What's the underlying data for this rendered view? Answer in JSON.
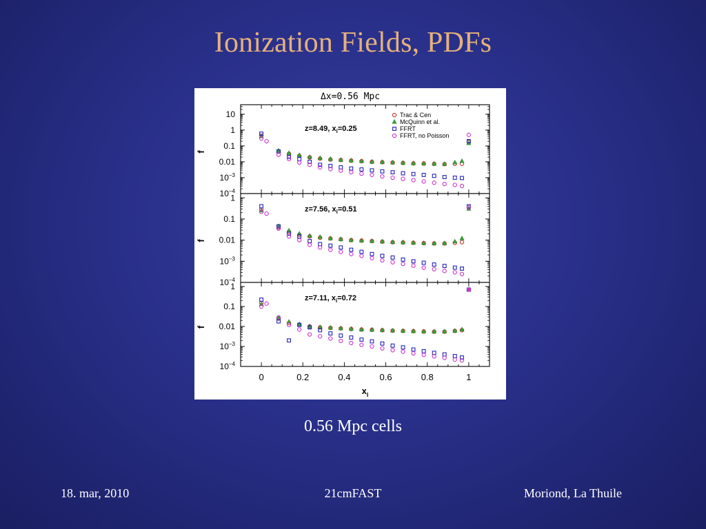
{
  "slide": {
    "title": "Ionization Fields, PDFs",
    "caption": "0.56 Mpc cells",
    "footer": {
      "date": "18. mar, 2010",
      "center": "21cmFAST",
      "venue": "Moriond, La Thuile"
    }
  },
  "chart_data": {
    "type": "scatter",
    "title": "Δx=0.56 Mpc",
    "xlabel": "x",
    "xlabel_subscript": "i",
    "ylabel": "f",
    "y_scale": "log",
    "xlim": [
      -0.1,
      1.1
    ],
    "x_ticks": [
      {
        "value": 0,
        "label": "0"
      },
      {
        "value": 0.2,
        "label": "0.2"
      },
      {
        "value": 0.4,
        "label": "0.4"
      },
      {
        "value": 0.6,
        "label": "0.6"
      },
      {
        "value": 0.8,
        "label": "0.8"
      },
      {
        "value": 1,
        "label": "1"
      }
    ],
    "legend_position": "top-right",
    "x": [
      0,
      0.025,
      0.083,
      0.133,
      0.183,
      0.233,
      0.283,
      0.333,
      0.383,
      0.433,
      0.483,
      0.533,
      0.583,
      0.633,
      0.683,
      0.733,
      0.783,
      0.833,
      0.883,
      0.933,
      0.967,
      1
    ],
    "series_styles": [
      {
        "name": "Trac & Cen",
        "marker": "circle",
        "color": "#c0392b"
      },
      {
        "name": "McQuinn et al.",
        "marker": "triangle",
        "color": "#3aa53a"
      },
      {
        "name": "FFRT",
        "marker": "square",
        "color": "#2222bb"
      },
      {
        "name": "FFRT, no Poisson",
        "marker": "circle",
        "color": "#cc33cc"
      }
    ],
    "panels": [
      {
        "annotation": "z=8.49,  x",
        "annotation_subscript": "i",
        "annotation_value": "=0.25",
        "ylim": [
          0.0001,
          40
        ],
        "y_ticks": [
          {
            "value": 10,
            "base": "10",
            "exp": ""
          },
          {
            "value": 1,
            "base": "1",
            "exp": ""
          },
          {
            "value": 0.1,
            "base": "0.1",
            "exp": ""
          },
          {
            "value": 0.01,
            "base": "0.01",
            "exp": ""
          },
          {
            "value": 0.001,
            "base": "10",
            "exp": "−3"
          },
          {
            "value": 0.0001,
            "base": "10",
            "exp": "−4"
          }
        ],
        "series": [
          {
            "name": "Trac & Cen",
            "values": [
              0.45,
              null,
              0.045,
              0.032,
              0.024,
              0.019,
              0.016,
              0.014,
              0.013,
              0.012,
              0.011,
              0.01,
              0.0095,
              0.009,
              0.0085,
              0.008,
              0.0078,
              0.0075,
              0.0072,
              0.0075,
              0.0075,
              0.18
            ]
          },
          {
            "name": "McQuinn et al.",
            "values": [
              0.4,
              null,
              0.05,
              0.035,
              0.026,
              0.02,
              0.017,
              0.015,
              0.013,
              0.012,
              0.011,
              0.01,
              0.0095,
              0.009,
              0.0085,
              0.008,
              0.0078,
              0.0075,
              0.0072,
              0.009,
              0.011,
              0.15
            ]
          },
          {
            "name": "FFRT",
            "values": [
              0.6,
              null,
              0.045,
              0.02,
              0.015,
              0.01,
              0.0065,
              0.0055,
              0.0045,
              0.0038,
              0.0033,
              0.0029,
              0.0025,
              0.0022,
              0.0019,
              0.0017,
              0.0015,
              0.0013,
              0.0011,
              0.001,
              0.00095,
              0.2
            ]
          },
          {
            "name": "FFRT, no Poisson",
            "values": [
              0.3,
              0.2,
              0.028,
              0.015,
              0.009,
              0.0065,
              0.0045,
              0.0035,
              0.0028,
              0.0022,
              0.0018,
              0.0015,
              0.0012,
              0.001,
              0.00085,
              0.0007,
              0.00058,
              0.00048,
              0.0004,
              0.00035,
              0.0003,
              0.5
            ]
          }
        ]
      },
      {
        "annotation": "z=7.56,  x",
        "annotation_subscript": "i",
        "annotation_value": "=0.51",
        "ylim": [
          0.0001,
          1.6
        ],
        "y_ticks": [
          {
            "value": 1,
            "base": "1",
            "exp": ""
          },
          {
            "value": 0.1,
            "base": "0.1",
            "exp": ""
          },
          {
            "value": 0.01,
            "base": "0.01",
            "exp": ""
          },
          {
            "value": 0.001,
            "base": "10",
            "exp": "−3"
          },
          {
            "value": 0.0001,
            "base": "10",
            "exp": "−4"
          }
        ],
        "series": [
          {
            "name": "Trac & Cen",
            "values": [
              0.28,
              null,
              0.04,
              0.025,
              0.018,
              0.015,
              0.013,
              0.012,
              0.011,
              0.01,
              0.0095,
              0.009,
              0.0085,
              0.008,
              0.0078,
              0.0075,
              0.0072,
              0.007,
              0.007,
              0.0075,
              0.008,
              0.35
            ]
          },
          {
            "name": "McQuinn et al.",
            "values": [
              0.25,
              null,
              0.045,
              0.028,
              0.02,
              0.016,
              0.014,
              0.012,
              0.011,
              0.01,
              0.0095,
              0.009,
              0.0085,
              0.008,
              0.0078,
              0.0075,
              0.0072,
              0.007,
              0.007,
              0.0085,
              0.012,
              0.3
            ]
          },
          {
            "name": "FFRT",
            "values": [
              0.4,
              null,
              0.045,
              0.02,
              0.015,
              0.009,
              0.0065,
              0.0055,
              0.0045,
              0.0035,
              0.0028,
              0.0022,
              0.0018,
              0.0015,
              0.0012,
              0.001,
              0.00085,
              0.0007,
              0.0006,
              0.0005,
              0.00045,
              0.4
            ]
          },
          {
            "name": "FFRT, no Poisson",
            "values": [
              0.22,
              0.18,
              0.035,
              0.015,
              0.01,
              0.006,
              0.0045,
              0.0035,
              0.0028,
              0.0022,
              0.0018,
              0.0014,
              0.0011,
              0.0009,
              0.00075,
              0.00062,
              0.0005,
              0.00042,
              0.00035,
              0.0003,
              0.00025,
              0.35
            ]
          }
        ]
      },
      {
        "annotation": "z=7.11,  x",
        "annotation_subscript": "i",
        "annotation_value": "=0.72",
        "ylim": [
          0.0001,
          1.6
        ],
        "y_ticks": [
          {
            "value": 1,
            "base": "1",
            "exp": ""
          },
          {
            "value": 0.1,
            "base": "0.1",
            "exp": ""
          },
          {
            "value": 0.01,
            "base": "0.01",
            "exp": ""
          },
          {
            "value": 0.001,
            "base": "10",
            "exp": "−3"
          },
          {
            "value": 0.0001,
            "base": "10",
            "exp": "−4"
          }
        ],
        "series": [
          {
            "name": "Trac & Cen",
            "values": [
              0.15,
              null,
              0.025,
              0.015,
              0.012,
              0.01,
              0.009,
              0.0085,
              0.008,
              0.0075,
              0.007,
              0.0068,
              0.0065,
              0.0062,
              0.006,
              0.0058,
              0.0056,
              0.0055,
              0.0055,
              0.006,
              0.0065,
              0.7
            ]
          },
          {
            "name": "McQuinn et al.",
            "values": [
              0.13,
              null,
              0.028,
              0.017,
              0.013,
              0.01,
              0.009,
              0.0085,
              0.008,
              0.0075,
              0.007,
              0.0068,
              0.0065,
              0.0062,
              0.006,
              0.0058,
              0.0056,
              0.0055,
              0.0055,
              0.006,
              0.007,
              0.7
            ]
          },
          {
            "name": "FFRT",
            "values": [
              0.22,
              null,
              0.018,
              0.002,
              0.012,
              0.009,
              0.0065,
              0.0045,
              0.0035,
              0.0028,
              0.0022,
              0.0018,
              0.0014,
              0.0011,
              0.0009,
              0.0007,
              0.00058,
              0.00048,
              0.0004,
              0.00033,
              0.00028,
              0.7
            ]
          },
          {
            "name": "FFRT, no Poisson",
            "values": [
              0.1,
              0.14,
              0.028,
              0.012,
              0.007,
              0.004,
              0.0032,
              0.0025,
              0.0019,
              0.0015,
              0.0012,
              0.001,
              0.0008,
              0.00065,
              0.00055,
              0.00045,
              0.00038,
              0.00032,
              0.00027,
              0.00022,
              0.0002,
              0.7
            ]
          }
        ]
      }
    ]
  }
}
